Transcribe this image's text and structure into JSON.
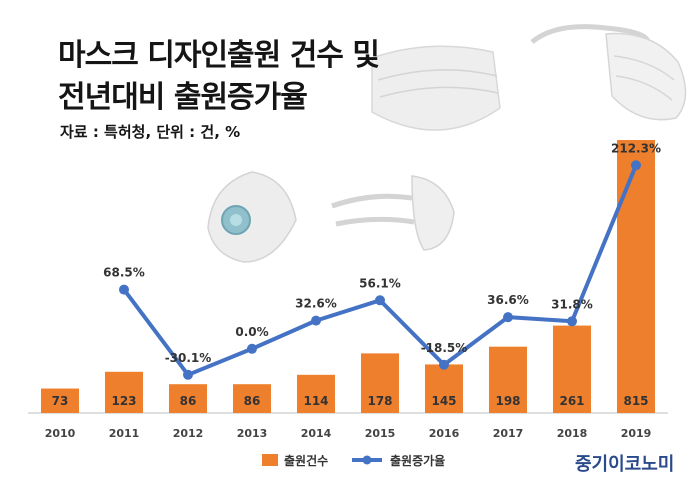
{
  "title_lines": [
    "마스크 디자인출원 건수 및",
    "전년대비 출원증가율"
  ],
  "source": "자료 : 특허청, 단위 : 건, %",
  "brand": "중기이코노미",
  "colors": {
    "bar": "#ee7f2d",
    "line": "#4472c4",
    "bar_label": "#333333",
    "axis": "#bfbfbf"
  },
  "chart_data": {
    "type": "bar",
    "categories": [
      "2010",
      "2011",
      "2012",
      "2013",
      "2014",
      "2015",
      "2016",
      "2017",
      "2018",
      "2019"
    ],
    "series": [
      {
        "name": "출원건수",
        "type": "bar",
        "axis": "left",
        "values": [
          73,
          123,
          86,
          86,
          114,
          178,
          145,
          198,
          261,
          815
        ]
      },
      {
        "name": "출원증가율",
        "type": "line",
        "axis": "right",
        "values": [
          null,
          68.5,
          -30.1,
          0.0,
          32.6,
          56.1,
          -18.5,
          36.6,
          31.8,
          212.3
        ],
        "labels": [
          "",
          "68.5%",
          "-30.1%",
          "0.0%",
          "32.6%",
          "56.1%",
          "-18.5%",
          "36.6%",
          "31.8%",
          "212.3%"
        ]
      }
    ],
    "ylim_left": [
      0,
      900
    ],
    "ylim_right": [
      -50,
      230
    ],
    "legend": "bottom"
  }
}
